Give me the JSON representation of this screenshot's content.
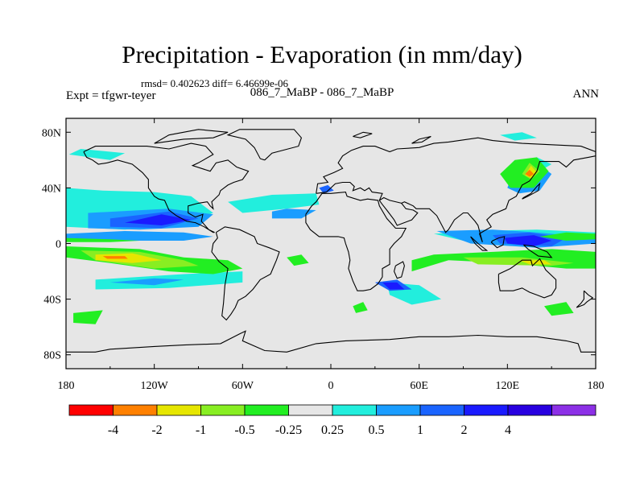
{
  "chart_data": {
    "type": "heatmap",
    "title": "Precipitation - Evaporation (in mm/day)",
    "stats_text": "rmsd= 0.402623  diff= 6.46699e-06",
    "left_label": "Expt = tfgwr-teyer",
    "center_label": "086_7_MaBP - 086_7_MaBP",
    "right_label": "ANN",
    "x_ticks": [
      {
        "value": -180,
        "label": "180"
      },
      {
        "value": -120,
        "label": "120W"
      },
      {
        "value": -60,
        "label": "60W"
      },
      {
        "value": 0,
        "label": "0"
      },
      {
        "value": 60,
        "label": "60E"
      },
      {
        "value": 120,
        "label": "120E"
      },
      {
        "value": 180,
        "label": "180"
      }
    ],
    "y_ticks": [
      {
        "value": 80,
        "label": "80N"
      },
      {
        "value": 40,
        "label": "40N"
      },
      {
        "value": 0,
        "label": "0"
      },
      {
        "value": -40,
        "label": "40S"
      },
      {
        "value": -80,
        "label": "80S"
      }
    ],
    "lon_range": [
      -180,
      180
    ],
    "lat_range": [
      -90,
      90
    ],
    "colorbar": {
      "colors": [
        "#ff0000",
        "#ff8000",
        "#e6e600",
        "#88ee22",
        "#22ee22",
        "#e6e6e6",
        "#22eedd",
        "#1a9dff",
        "#1a64ff",
        "#1a1aff",
        "#2800e0",
        "#8c30e6"
      ],
      "labels": [
        "-4",
        "-2",
        "-1",
        "-0.5",
        "-0.25",
        "0.25",
        "0.5",
        "1",
        "2",
        "4"
      ]
    },
    "background_color": "#e6e6e6",
    "regions": [
      {
        "level": 0.25,
        "polys": [
          [
            [
              -180,
              40
            ],
            [
              -155,
              38
            ],
            [
              -120,
              37
            ],
            [
              -95,
              34
            ],
            [
              -80,
              22
            ],
            [
              -100,
              14
            ],
            [
              -140,
              10
            ],
            [
              -180,
              12
            ]
          ],
          [
            [
              -70,
              30
            ],
            [
              -40,
              35
            ],
            [
              -10,
              36
            ],
            [
              -8,
              28
            ],
            [
              -30,
              25
            ],
            [
              -60,
              22
            ]
          ],
          [
            [
              -178,
              64
            ],
            [
              -150,
              60
            ],
            [
              -140,
              65
            ],
            [
              -170,
              68
            ]
          ],
          [
            [
              70,
              7
            ],
            [
              100,
              9
            ],
            [
              140,
              10
            ],
            [
              180,
              8
            ],
            [
              180,
              2
            ],
            [
              140,
              -2
            ],
            [
              90,
              2
            ]
          ],
          [
            [
              -160,
              -26
            ],
            [
              -100,
              -22
            ],
            [
              -60,
              -20
            ],
            [
              -60,
              -28
            ],
            [
              -110,
              -32
            ],
            [
              -160,
              -33
            ]
          ],
          [
            [
              115,
              78
            ],
            [
              130,
              80
            ],
            [
              140,
              76
            ],
            [
              125,
              74
            ]
          ],
          [
            [
              120,
              55
            ],
            [
              140,
              62
            ],
            [
              150,
              57
            ],
            [
              135,
              48
            ]
          ],
          [
            [
              38,
              -28
            ],
            [
              60,
              -30
            ],
            [
              75,
              -40
            ],
            [
              55,
              -44
            ],
            [
              40,
              -37
            ]
          ]
        ]
      },
      {
        "level": 0.5,
        "polys": [
          [
            [
              -165,
              22
            ],
            [
              -110,
              25
            ],
            [
              -80,
              21
            ],
            [
              -90,
              12
            ],
            [
              -130,
              10
            ],
            [
              -165,
              11
            ]
          ],
          [
            [
              -180,
              7
            ],
            [
              -140,
              9
            ],
            [
              -100,
              8
            ],
            [
              -80,
              5
            ],
            [
              -100,
              2
            ],
            [
              -180,
              2
            ]
          ],
          [
            [
              -40,
              23
            ],
            [
              -30,
              25
            ],
            [
              -10,
              24
            ],
            [
              -20,
              18
            ],
            [
              -40,
              18
            ]
          ],
          [
            [
              72,
              9
            ],
            [
              110,
              10
            ],
            [
              140,
              8
            ],
            [
              180,
              4
            ],
            [
              180,
              0
            ],
            [
              140,
              -3
            ],
            [
              95,
              0
            ]
          ],
          [
            [
              120,
              40
            ],
            [
              125,
              55
            ],
            [
              140,
              58
            ],
            [
              150,
              50
            ],
            [
              142,
              38
            ],
            [
              128,
              36
            ]
          ],
          [
            [
              -150,
              -28
            ],
            [
              -120,
              -25
            ],
            [
              -100,
              -26
            ],
            [
              -120,
              -30
            ]
          ]
        ]
      },
      {
        "level": 1,
        "polys": [
          [
            [
              -150,
              18
            ],
            [
              -110,
              23
            ],
            [
              -90,
              18
            ],
            [
              -115,
              11
            ],
            [
              -150,
              12
            ]
          ],
          [
            [
              110,
              6
            ],
            [
              135,
              8
            ],
            [
              160,
              4
            ],
            [
              150,
              -2
            ],
            [
              115,
              0
            ]
          ],
          [
            [
              -8,
              40
            ],
            [
              -2,
              42
            ],
            [
              2,
              38
            ],
            [
              -5,
              36
            ]
          ],
          [
            [
              30,
              -28
            ],
            [
              45,
              -26
            ],
            [
              55,
              -33
            ],
            [
              40,
              -34
            ]
          ]
        ]
      },
      {
        "level": 2,
        "polys": [
          [
            [
              -140,
              15
            ],
            [
              -115,
              21
            ],
            [
              -95,
              17
            ],
            [
              -115,
              13
            ]
          ],
          [
            [
              118,
              4
            ],
            [
              138,
              6
            ],
            [
              150,
              2
            ],
            [
              138,
              -2
            ],
            [
              120,
              0
            ]
          ],
          [
            [
              35,
              -28
            ],
            [
              45,
              -28
            ],
            [
              50,
              -33
            ],
            [
              40,
              -33
            ]
          ]
        ]
      },
      {
        "level": -0.25,
        "polys": [
          [
            [
              -180,
              -2
            ],
            [
              -130,
              -4
            ],
            [
              -100,
              -10
            ],
            [
              -70,
              -12
            ],
            [
              -60,
              -18
            ],
            [
              -80,
              -22
            ],
            [
              -110,
              -20
            ],
            [
              -150,
              -14
            ],
            [
              -180,
              -10
            ]
          ],
          [
            [
              -180,
              4
            ],
            [
              -150,
              3
            ],
            [
              -130,
              2
            ],
            [
              -150,
              1
            ],
            [
              -180,
              1
            ]
          ],
          [
            [
              -175,
              -50
            ],
            [
              -155,
              -48
            ],
            [
              -160,
              -58
            ],
            [
              -175,
              -57
            ]
          ],
          [
            [
              55,
              -20
            ],
            [
              80,
              -12
            ],
            [
              120,
              -14
            ],
            [
              160,
              -18
            ],
            [
              180,
              -18
            ],
            [
              180,
              -6
            ],
            [
              150,
              -4
            ],
            [
              110,
              -6
            ],
            [
              70,
              -8
            ],
            [
              55,
              -12
            ]
          ],
          [
            [
              142,
              5
            ],
            [
              160,
              8
            ],
            [
              180,
              7
            ],
            [
              180,
              3
            ],
            [
              160,
              2
            ]
          ],
          [
            [
              115,
              50
            ],
            [
              125,
              60
            ],
            [
              140,
              62
            ],
            [
              148,
              52
            ],
            [
              138,
              40
            ],
            [
              122,
              40
            ]
          ],
          [
            [
              -30,
              -10
            ],
            [
              -20,
              -8
            ],
            [
              -15,
              -14
            ],
            [
              -25,
              -16
            ]
          ],
          [
            [
              15,
              -45
            ],
            [
              22,
              -42
            ],
            [
              25,
              -48
            ],
            [
              17,
              -50
            ]
          ],
          [
            [
              145,
              -45
            ],
            [
              160,
              -42
            ],
            [
              165,
              -50
            ],
            [
              150,
              -52
            ]
          ]
        ]
      },
      {
        "level": -0.5,
        "polys": [
          [
            [
              -170,
              -5
            ],
            [
              -130,
              -6
            ],
            [
              -100,
              -12
            ],
            [
              -90,
              -16
            ],
            [
              -120,
              -18
            ],
            [
              -160,
              -12
            ]
          ],
          [
            [
              90,
              -10
            ],
            [
              130,
              -10
            ],
            [
              165,
              -14
            ],
            [
              150,
              -16
            ],
            [
              100,
              -15
            ]
          ],
          [
            [
              130,
              50
            ],
            [
              135,
              58
            ],
            [
              142,
              52
            ],
            [
              136,
              46
            ]
          ]
        ]
      },
      {
        "level": -1,
        "polys": [
          [
            [
              -160,
              -8
            ],
            [
              -135,
              -7
            ],
            [
              -115,
              -12
            ],
            [
              -135,
              -14
            ],
            [
              -160,
              -12
            ]
          ],
          [
            [
              128,
              -12
            ],
            [
              145,
              -12
            ],
            [
              150,
              -15
            ],
            [
              135,
              -15
            ]
          ],
          [
            [
              132,
              49
            ],
            [
              136,
              56
            ],
            [
              140,
              51
            ],
            [
              136,
              47
            ]
          ]
        ]
      },
      {
        "level": -2,
        "polys": [
          [
            [
              -155,
              -9
            ],
            [
              -140,
              -9
            ],
            [
              -138,
              -11
            ],
            [
              -152,
              -11
            ]
          ],
          [
            [
              132,
              50
            ],
            [
              135,
              53
            ],
            [
              138,
              50
            ],
            [
              135,
              48
            ]
          ]
        ]
      }
    ]
  }
}
